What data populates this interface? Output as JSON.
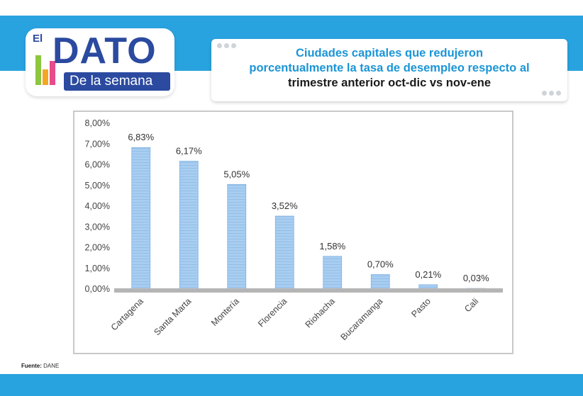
{
  "header": {
    "logo_el": "El",
    "logo_dato": "DATO",
    "logo_subtitle": "De la semana",
    "title_line1": "Ciudades capitales que redujeron",
    "title_line2": "porcentualmente la tasa de desempleo respecto al",
    "title_line3": "trimestre anterior oct-dic vs nov-ene"
  },
  "colors": {
    "brand_blue": "#29a3df",
    "logo_blue": "#2b4aa0",
    "title_blue": "#1b95d6",
    "bar_fill": "#a9cdf0",
    "bar_stroke": "#7fb2e3"
  },
  "chart_data": {
    "type": "bar",
    "categories": [
      "Cartagena",
      "Santa Marta",
      "Montería",
      "Florencia",
      "Riohacha",
      "Bucaramanga",
      "Pasto",
      "Cali"
    ],
    "values": [
      6.83,
      6.17,
      5.05,
      3.52,
      1.58,
      0.7,
      0.21,
      0.03
    ],
    "data_labels": [
      "6,83%",
      "6,17%",
      "5,05%",
      "3,52%",
      "1,58%",
      "0,70%",
      "0,21%",
      "0,03%"
    ],
    "y_ticks": [
      "0,00%",
      "1,00%",
      "2,00%",
      "3,00%",
      "4,00%",
      "5,00%",
      "6,00%",
      "7,00%",
      "8,00%"
    ],
    "ylim": [
      0,
      8
    ],
    "title": "Ciudades capitales que redujeron porcentualmente la tasa de desempleo respecto al trimestre anterior oct-dic vs nov-ene",
    "xlabel": "",
    "ylabel": "",
    "grid": false
  },
  "footer": {
    "source_label": "Fuente:",
    "source_value": "DANE"
  }
}
